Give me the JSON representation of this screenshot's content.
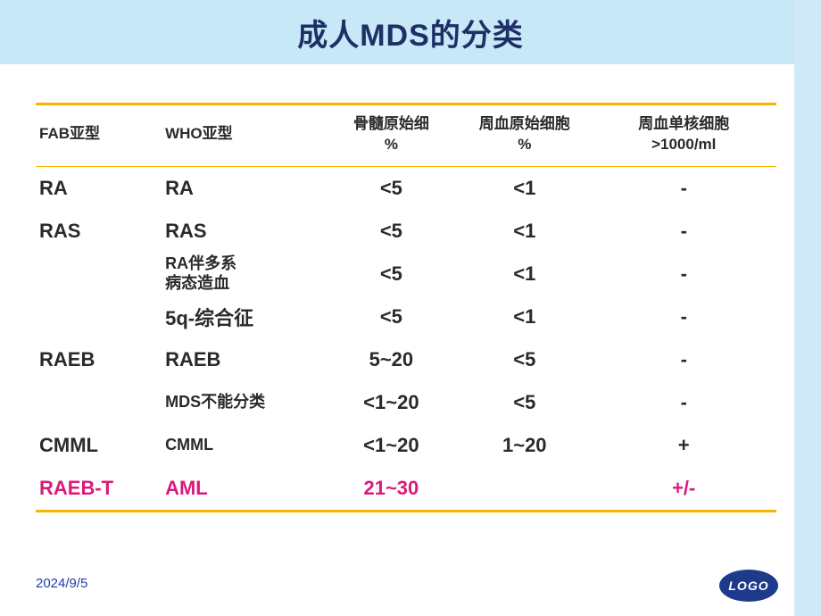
{
  "title": "成人MDS的分类",
  "colors": {
    "header_band": "#c7e8f6",
    "right_rail": "#d0e9f7",
    "title_text": "#1e2f66",
    "rule": "#f4b400",
    "body_text": "#2a2a2a",
    "highlight": "#d81b7a",
    "date_text": "#1f3ea8",
    "logo_bg": "#1e3a8a",
    "logo_text": "#ffffff"
  },
  "table": {
    "type": "table",
    "columns": [
      {
        "key": "fab",
        "label": "FAB亚型",
        "align": "left",
        "width_pct": 17
      },
      {
        "key": "who",
        "label": "WHO亚型",
        "align": "left",
        "width_pct": 22
      },
      {
        "key": "bm",
        "label": "骨髓原始细\n%",
        "align": "center",
        "width_pct": 18
      },
      {
        "key": "pb",
        "label": "周血原始细胞\n%",
        "align": "center",
        "width_pct": 18
      },
      {
        "key": "mono",
        "label": "周血单核细胞\n>1000/ml",
        "align": "center",
        "width_pct": 25
      }
    ],
    "rows": [
      {
        "fab": "RA",
        "who": "RA",
        "bm": "<5",
        "pb": "<1",
        "mono": "-",
        "who_small": false
      },
      {
        "fab": "RAS",
        "who": "RAS",
        "bm": "<5",
        "pb": "<1",
        "mono": "-",
        "who_small": false
      },
      {
        "fab": "",
        "who": "RA伴多系\n病态造血",
        "bm": "<5",
        "pb": "<1",
        "mono": "-",
        "who_small": true
      },
      {
        "fab": "",
        "who": "5q-综合征",
        "bm": "<5",
        "pb": "<1",
        "mono": "-",
        "who_small": false
      },
      {
        "fab": "RAEB",
        "who": "RAEB",
        "bm": "5~20",
        "pb": "<5",
        "mono": "-",
        "who_small": false
      },
      {
        "fab": "",
        "who": "MDS不能分类",
        "bm": "<1~20",
        "pb": "<5",
        "mono": "-",
        "who_small": true
      },
      {
        "fab": "CMML",
        "who": "CMML",
        "bm": "<1~20",
        "pb": "1~20",
        "mono": "+",
        "who_small": true
      },
      {
        "fab": "RAEB-T",
        "who": "AML",
        "bm": "21~30",
        "pb": "",
        "mono": "+/-",
        "who_small": false,
        "highlight": true
      }
    ]
  },
  "footer": {
    "date": "2024/9/5",
    "logo_text": "LOGO"
  }
}
